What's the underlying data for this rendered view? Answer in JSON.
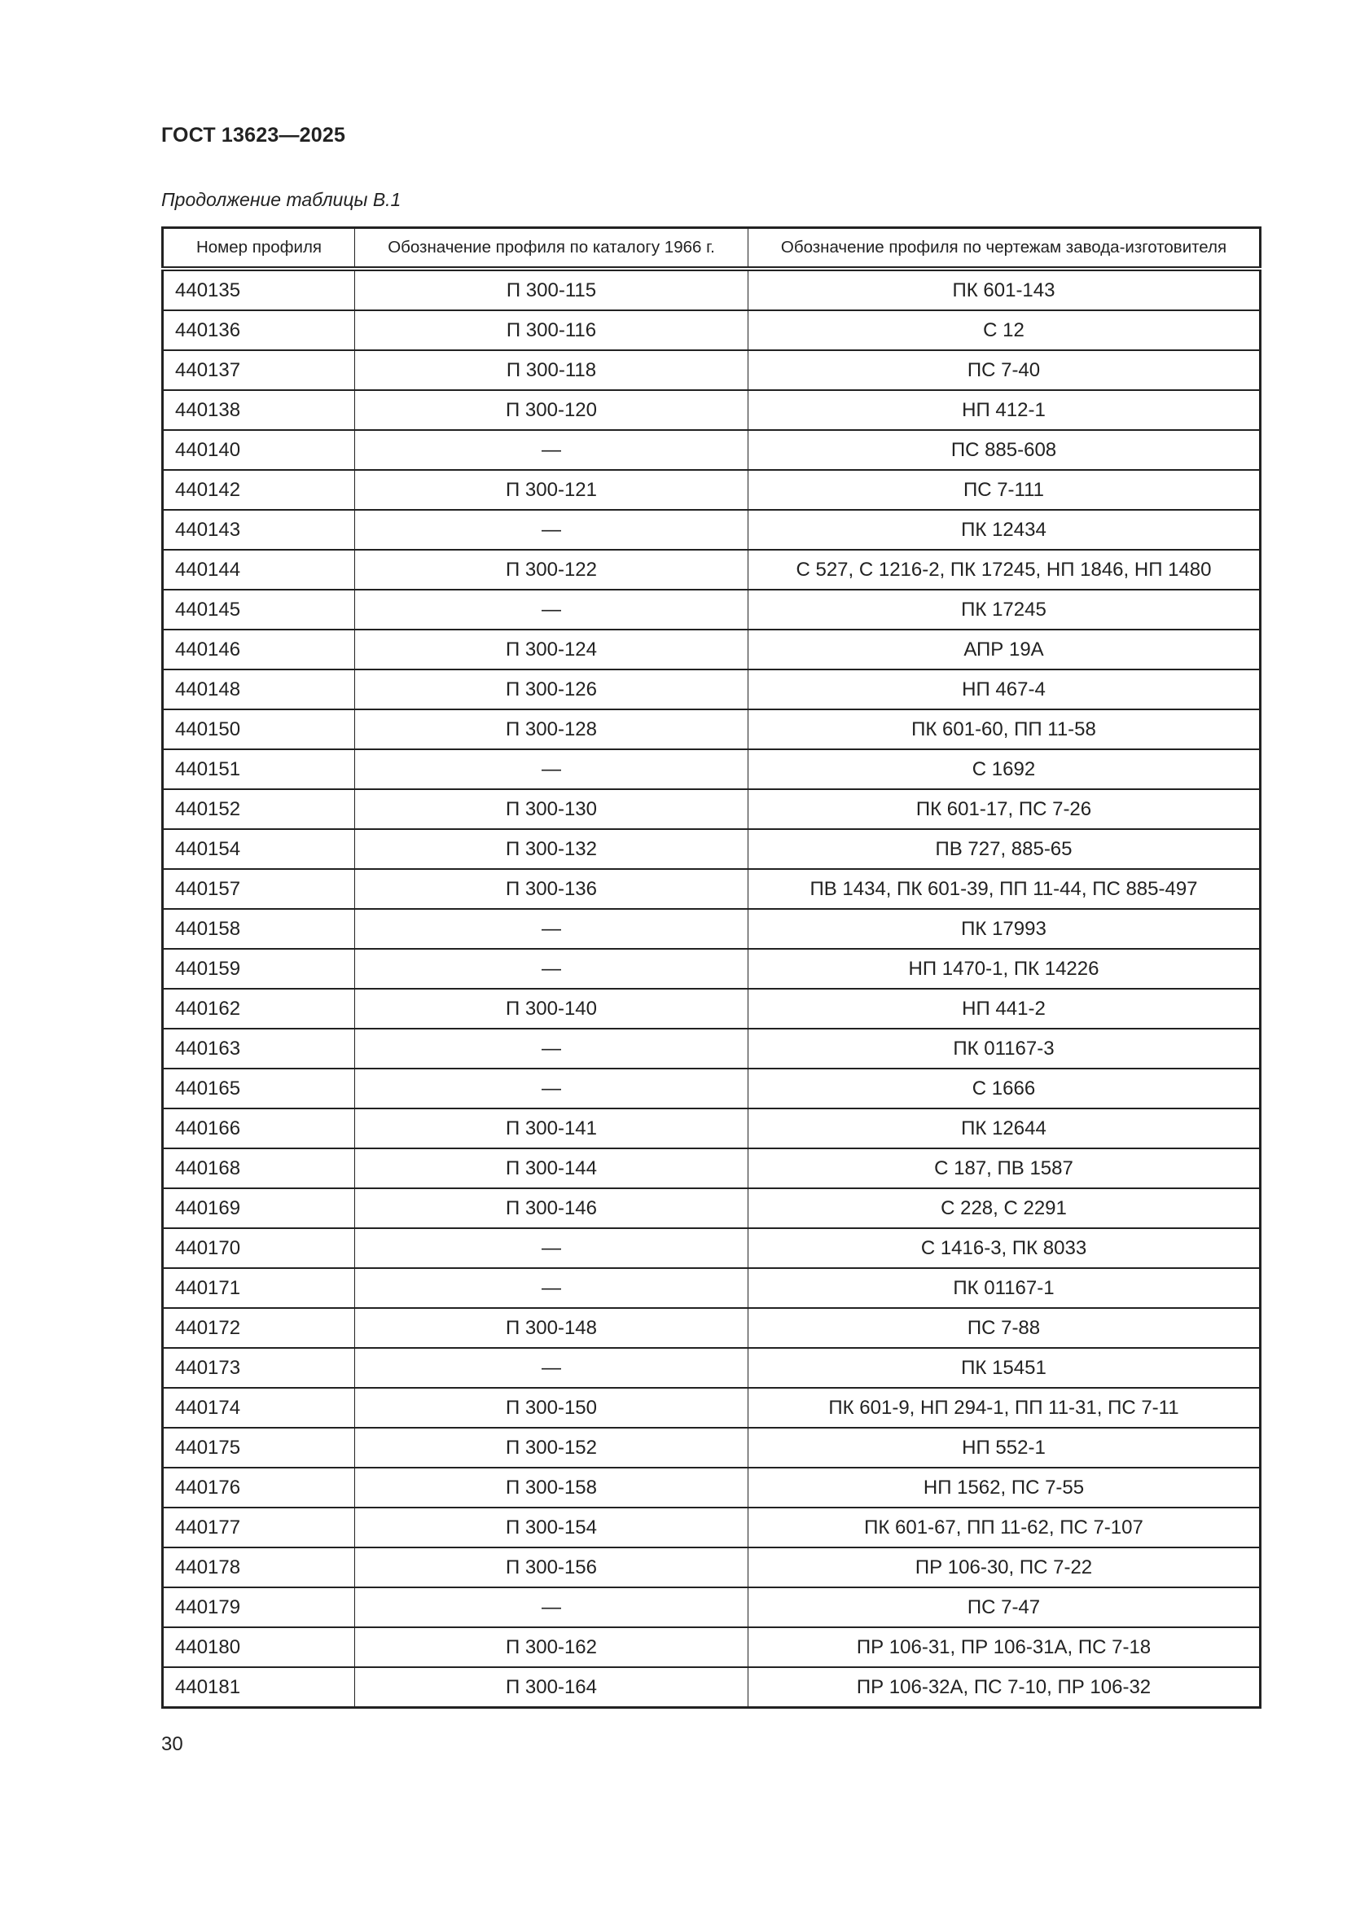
{
  "header": {
    "title": "ГОСТ 13623—2025"
  },
  "caption": "Продолжение таблицы В.1",
  "table": {
    "columns": [
      "Номер профиля",
      "Обозначение профиля по каталогу 1966 г.",
      "Обозначение профиля по чертежам завода-изготовителя"
    ],
    "rows": [
      [
        "440135",
        "П 300-115",
        "ПК 601-143"
      ],
      [
        "440136",
        "П 300-116",
        "С 12"
      ],
      [
        "440137",
        "П 300-118",
        "ПС 7-40"
      ],
      [
        "440138",
        "П 300-120",
        "НП 412-1"
      ],
      [
        "440140",
        "—",
        "ПС 885-608"
      ],
      [
        "440142",
        "П 300-121",
        "ПС 7-111"
      ],
      [
        "440143",
        "—",
        "ПК 12434"
      ],
      [
        "440144",
        "П 300-122",
        "С 527, С 1216-2, ПК 17245, НП 1846, НП 1480"
      ],
      [
        "440145",
        "—",
        "ПК 17245"
      ],
      [
        "440146",
        "П 300-124",
        "АПР 19А"
      ],
      [
        "440148",
        "П 300-126",
        "НП 467-4"
      ],
      [
        "440150",
        "П 300-128",
        "ПК 601-60, ПП 11-58"
      ],
      [
        "440151",
        "—",
        "С 1692"
      ],
      [
        "440152",
        "П 300-130",
        "ПК 601-17, ПС 7-26"
      ],
      [
        "440154",
        "П 300-132",
        "ПВ 727, 885-65"
      ],
      [
        "440157",
        "П 300-136",
        "ПВ 1434, ПК 601-39, ПП 11-44, ПС 885-497"
      ],
      [
        "440158",
        "—",
        "ПК 17993"
      ],
      [
        "440159",
        "—",
        "НП 1470-1, ПК 14226"
      ],
      [
        "440162",
        "П 300-140",
        "НП 441-2"
      ],
      [
        "440163",
        "—",
        "ПК 01167-3"
      ],
      [
        "440165",
        "—",
        "С 1666"
      ],
      [
        "440166",
        "П 300-141",
        "ПК 12644"
      ],
      [
        "440168",
        "П 300-144",
        "С 187, ПВ 1587"
      ],
      [
        "440169",
        "П 300-146",
        "С 228, С 2291"
      ],
      [
        "440170",
        "—",
        "С 1416-3, ПК 8033"
      ],
      [
        "440171",
        "—",
        "ПК 01167-1"
      ],
      [
        "440172",
        "П 300-148",
        "ПС 7-88"
      ],
      [
        "440173",
        "—",
        "ПК 15451"
      ],
      [
        "440174",
        "П 300-150",
        "ПК 601-9, НП 294-1, ПП 11-31, ПС 7-11"
      ],
      [
        "440175",
        "П 300-152",
        "НП 552-1"
      ],
      [
        "440176",
        "П 300-158",
        "НП 1562, ПС 7-55"
      ],
      [
        "440177",
        "П 300-154",
        "ПК 601-67, ПП 11-62, ПС 7-107"
      ],
      [
        "440178",
        "П 300-156",
        "ПР 106-30, ПС 7-22"
      ],
      [
        "440179",
        "—",
        "ПС 7-47"
      ],
      [
        "440180",
        "П 300-162",
        "ПР 106-31, ПР 106-31А, ПС 7-18"
      ],
      [
        "440181",
        "П 300-164",
        "ПР 106-32А, ПС 7-10, ПР 106-32"
      ]
    ]
  },
  "footer": {
    "page_number": "30"
  }
}
